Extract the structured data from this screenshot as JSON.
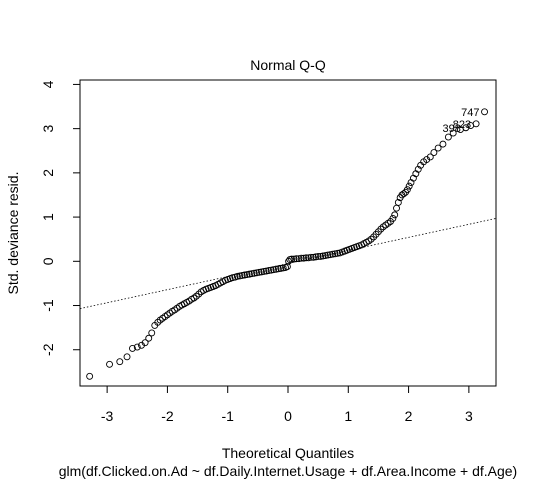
{
  "chart_data": {
    "type": "scatter",
    "title": "Normal Q-Q",
    "xlabel": "Theoretical Quantiles",
    "ylabel": "Std. deviance resid.",
    "subtitle": "glm(df.Clicked.on.Ad ~ df.Daily.Internet.Usage + df.Area.Income + df.Age)",
    "xlim": [
      -3.45,
      3.45
    ],
    "ylim": [
      -2.82,
      4.1
    ],
    "xticks": [
      -3,
      -2,
      -1,
      0,
      1,
      2,
      3
    ],
    "yticks": [
      -2,
      -1,
      0,
      1,
      2,
      3,
      4
    ],
    "x_tick_labels": [
      "-3",
      "-2",
      "-1",
      "0",
      "1",
      "2",
      "3"
    ],
    "y_tick_labels": [
      "-2",
      "-1",
      "0",
      "1",
      "2",
      "3",
      "4"
    ],
    "grid": false,
    "reference_line": {
      "x": [
        -3.45,
        3.45
      ],
      "y": [
        -1.07,
        0.97
      ],
      "style": "dotted"
    },
    "series": [
      {
        "marker": "open-circle",
        "points": [
          [
            -3.29,
            -2.6
          ],
          [
            -2.96,
            -2.33
          ],
          [
            -2.79,
            -2.27
          ],
          [
            -2.67,
            -2.16
          ],
          [
            -2.58,
            -1.97
          ],
          [
            -2.5,
            -1.94
          ],
          [
            -2.43,
            -1.9
          ],
          [
            -2.37,
            -1.84
          ],
          [
            -2.31,
            -1.74
          ],
          [
            -2.26,
            -1.62
          ],
          [
            -2.21,
            -1.45
          ],
          [
            -2.16,
            -1.38
          ],
          [
            -2.12,
            -1.33
          ],
          [
            -2.08,
            -1.29
          ],
          [
            -2.04,
            -1.25
          ],
          [
            -2.0,
            -1.21
          ],
          [
            -1.96,
            -1.17
          ],
          [
            -1.92,
            -1.13
          ],
          [
            -1.88,
            -1.1
          ],
          [
            -1.84,
            -1.06
          ],
          [
            -1.8,
            -1.02
          ],
          [
            -1.76,
            -0.99
          ],
          [
            -1.72,
            -0.96
          ],
          [
            -1.68,
            -0.93
          ],
          [
            -1.64,
            -0.9
          ],
          [
            -1.6,
            -0.86
          ],
          [
            -1.56,
            -0.83
          ],
          [
            -1.52,
            -0.79
          ],
          [
            -1.48,
            -0.74
          ],
          [
            -1.44,
            -0.69
          ],
          [
            -1.4,
            -0.66
          ],
          [
            -1.36,
            -0.63
          ],
          [
            -1.32,
            -0.61
          ],
          [
            -1.28,
            -0.59
          ],
          [
            -1.24,
            -0.57
          ],
          [
            -1.2,
            -0.55
          ],
          [
            -1.16,
            -0.52
          ],
          [
            -1.12,
            -0.49
          ],
          [
            -1.08,
            -0.46
          ],
          [
            -1.04,
            -0.43
          ],
          [
            -1.0,
            -0.41
          ],
          [
            -0.96,
            -0.39
          ],
          [
            -0.92,
            -0.37
          ],
          [
            -0.88,
            -0.36
          ],
          [
            -0.84,
            -0.34
          ],
          [
            -0.8,
            -0.33
          ],
          [
            -0.76,
            -0.32
          ],
          [
            -0.72,
            -0.31
          ],
          [
            -0.68,
            -0.3
          ],
          [
            -0.64,
            -0.29
          ],
          [
            -0.6,
            -0.28
          ],
          [
            -0.56,
            -0.27
          ],
          [
            -0.52,
            -0.26
          ],
          [
            -0.48,
            -0.25
          ],
          [
            -0.44,
            -0.24
          ],
          [
            -0.4,
            -0.23
          ],
          [
            -0.36,
            -0.22
          ],
          [
            -0.32,
            -0.21
          ],
          [
            -0.28,
            -0.2
          ],
          [
            -0.24,
            -0.19
          ],
          [
            -0.2,
            -0.18
          ],
          [
            -0.16,
            -0.17
          ],
          [
            -0.12,
            -0.16
          ],
          [
            -0.08,
            -0.15
          ],
          [
            -0.04,
            -0.14
          ],
          [
            -0.01,
            -0.12
          ],
          [
            0.01,
            0.0
          ],
          [
            0.03,
            0.04
          ],
          [
            0.06,
            0.05
          ],
          [
            0.1,
            0.05
          ],
          [
            0.14,
            0.06
          ],
          [
            0.18,
            0.06
          ],
          [
            0.22,
            0.07
          ],
          [
            0.26,
            0.07
          ],
          [
            0.3,
            0.08
          ],
          [
            0.34,
            0.08
          ],
          [
            0.38,
            0.09
          ],
          [
            0.42,
            0.09
          ],
          [
            0.46,
            0.1
          ],
          [
            0.5,
            0.11
          ],
          [
            0.54,
            0.11
          ],
          [
            0.58,
            0.12
          ],
          [
            0.62,
            0.13
          ],
          [
            0.66,
            0.14
          ],
          [
            0.7,
            0.15
          ],
          [
            0.74,
            0.16
          ],
          [
            0.78,
            0.17
          ],
          [
            0.82,
            0.18
          ],
          [
            0.86,
            0.19
          ],
          [
            0.9,
            0.21
          ],
          [
            0.94,
            0.23
          ],
          [
            0.98,
            0.25
          ],
          [
            1.02,
            0.27
          ],
          [
            1.06,
            0.29
          ],
          [
            1.1,
            0.31
          ],
          [
            1.14,
            0.33
          ],
          [
            1.18,
            0.35
          ],
          [
            1.22,
            0.37
          ],
          [
            1.26,
            0.4
          ],
          [
            1.3,
            0.43
          ],
          [
            1.34,
            0.46
          ],
          [
            1.38,
            0.5
          ],
          [
            1.42,
            0.55
          ],
          [
            1.46,
            0.61
          ],
          [
            1.5,
            0.67
          ],
          [
            1.54,
            0.73
          ],
          [
            1.58,
            0.78
          ],
          [
            1.62,
            0.82
          ],
          [
            1.66,
            0.86
          ],
          [
            1.7,
            0.9
          ],
          [
            1.74,
            0.97
          ],
          [
            1.77,
            1.05
          ],
          [
            1.8,
            1.2
          ],
          [
            1.83,
            1.33
          ],
          [
            1.86,
            1.44
          ],
          [
            1.89,
            1.5
          ],
          [
            1.92,
            1.53
          ],
          [
            1.95,
            1.56
          ],
          [
            1.98,
            1.62
          ],
          [
            2.01,
            1.7
          ],
          [
            2.04,
            1.78
          ],
          [
            2.08,
            1.88
          ],
          [
            2.12,
            1.98
          ],
          [
            2.16,
            2.08
          ],
          [
            2.2,
            2.17
          ],
          [
            2.25,
            2.25
          ],
          [
            2.3,
            2.3
          ],
          [
            2.36,
            2.36
          ],
          [
            2.42,
            2.46
          ],
          [
            2.49,
            2.56
          ],
          [
            2.57,
            2.65
          ],
          [
            2.66,
            2.81
          ],
          [
            2.74,
            2.9
          ],
          [
            2.86,
            2.98
          ],
          [
            3.03,
            3.07
          ],
          [
            2.95,
            3.02
          ],
          [
            3.12,
            3.11
          ],
          [
            3.26,
            3.38
          ]
        ]
      }
    ],
    "point_labels": [
      {
        "text": "747",
        "x": 3.26,
        "y": 3.38
      },
      {
        "text": "823",
        "x": 3.12,
        "y": 3.11
      },
      {
        "text": "398",
        "x": 2.95,
        "y": 3.02
      }
    ]
  }
}
